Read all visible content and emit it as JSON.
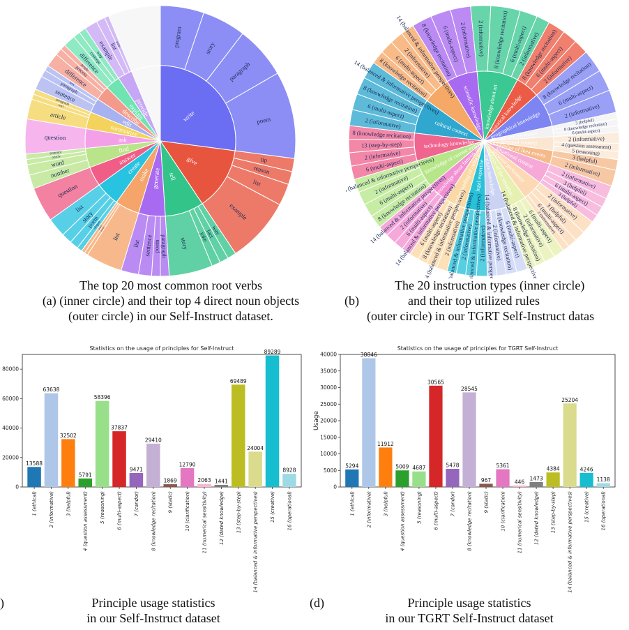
{
  "caption_a": {
    "letter": "(a)",
    "lines": [
      "The top 20 most common root verbs",
      "(inner circle) and their top 4 direct noun objects",
      "(outer circle) in our Self-Instruct dataset."
    ]
  },
  "caption_b": {
    "letter": "(b)",
    "lines": [
      "The 20 instruction types (inner circle)",
      "and their top utilized rules",
      "(outer circle) in our TGRT Self-Instruct datas"
    ]
  },
  "caption_c": {
    "letter": ")",
    "lines": [
      "Principle usage statistics",
      "in our Self-Instruct dataset"
    ]
  },
  "caption_d": {
    "letter": "(d)",
    "lines": [
      "Principle usage statistics",
      "in our TGRT Self-Instruct dataset"
    ]
  },
  "sunburst_a": {
    "inner": [
      {
        "label": "write",
        "color": "#6b6ef2",
        "weight": 26
      },
      {
        "label": "give",
        "color": "#e8553f",
        "weight": 13
      },
      {
        "label": "tell",
        "color": "#33c48a",
        "weight": 8
      },
      {
        "label": "generate",
        "color": "#a76af0",
        "weight": 5.5
      },
      {
        "label": "make",
        "color": "#f5a56a",
        "weight": 5
      },
      {
        "label": "create",
        "color": "#28c3e0",
        "weight": 5
      },
      {
        "label": "answer",
        "color": "#f05d86",
        "weight": 4
      },
      {
        "label": "find",
        "color": "#b9e48a",
        "weight": 4
      },
      {
        "label": "ask",
        "color": "#f3a0e8",
        "weight": 4
      },
      {
        "label": "summarize",
        "color": "#f3d35c",
        "weight": 3.5
      },
      {
        "label": "edit",
        "color": "#a9b2f0",
        "weight": 3
      },
      {
        "label": "describe",
        "color": "#f49a8a",
        "weight": 3
      },
      {
        "label": "explain",
        "color": "#6fe3b2",
        "weight": 3
      },
      {
        "label": "provide",
        "color": "#c6a7f5",
        "weight": 3
      },
      {
        "label": "",
        "color": "#f7f7f7",
        "weight": 6
      }
    ],
    "outer": [
      {
        "label": "program",
        "parent": 0,
        "weight": 5
      },
      {
        "label": "story",
        "parent": 0,
        "weight": 5
      },
      {
        "label": "paragraph",
        "parent": 0,
        "weight": 6
      },
      {
        "label": "poem",
        "parent": 0,
        "weight": 10
      },
      {
        "label": "tip",
        "parent": 1,
        "weight": 1.5
      },
      {
        "label": "reason",
        "parent": 1,
        "weight": 1.5
      },
      {
        "label": "list",
        "parent": 1,
        "weight": 2.5
      },
      {
        "label": "example",
        "parent": 1,
        "weight": 7.5
      },
      {
        "label": "way",
        "parent": 2,
        "weight": 1
      },
      {
        "label": "fact",
        "parent": 2,
        "weight": 1
      },
      {
        "label": "joke",
        "parent": 2,
        "weight": 1
      },
      {
        "label": "story",
        "parent": 2,
        "weight": 5
      },
      {
        "label": "paragraph",
        "parent": 3,
        "weight": 1
      },
      {
        "label": "poem",
        "parent": 3,
        "weight": 1
      },
      {
        "label": "sentence",
        "parent": 3,
        "weight": 1.5
      },
      {
        "label": "list",
        "parent": 3,
        "weight": 2
      },
      {
        "label": "list",
        "parent": 4,
        "weight": 4.2
      },
      {
        "label": "essay",
        "parent": 4,
        "weight": 0.4
      },
      {
        "label": "story",
        "parent": 4,
        "weight": 0.4
      },
      {
        "label": "slogan",
        "parent": 5,
        "weight": 0.6
      },
      {
        "label": "poem",
        "parent": 5,
        "weight": 1
      },
      {
        "label": "story",
        "parent": 5,
        "weight": 1.2
      },
      {
        "label": "list",
        "parent": 5,
        "weight": 2.2
      },
      {
        "label": "question",
        "parent": 6,
        "weight": 4
      },
      {
        "label": "number",
        "parent": 7,
        "weight": 1.6
      },
      {
        "label": "word",
        "parent": 7,
        "weight": 1.2
      },
      {
        "label": "article",
        "parent": 7,
        "weight": 0.6
      },
      {
        "label": "sentence",
        "parent": 7,
        "weight": 0.6
      },
      {
        "label": "question",
        "parent": 8,
        "weight": 4
      },
      {
        "label": "article",
        "parent": 9,
        "weight": 2.3
      },
      {
        "label": "text",
        "parent": 9,
        "weight": 0.6
      },
      {
        "label": "paragraph",
        "parent": 9,
        "weight": 0.6
      },
      {
        "label": "sentence",
        "parent": 10,
        "weight": 1.6
      },
      {
        "label": "paragraph",
        "parent": 10,
        "weight": 0.8
      },
      {
        "label": "text",
        "parent": 10,
        "weight": 0.6
      },
      {
        "label": "difference",
        "parent": 11,
        "weight": 1.6
      },
      {
        "label": "process",
        "parent": 11,
        "weight": 0.8
      },
      {
        "label": "people",
        "parent": 11,
        "weight": 0.6
      },
      {
        "label": "difference",
        "parent": 12,
        "weight": 1.4
      },
      {
        "label": "concept",
        "parent": 12,
        "weight": 0.8
      },
      {
        "label": "way",
        "parent": 12,
        "weight": 0.8
      },
      {
        "label": "example",
        "parent": 13,
        "weight": 1.5
      },
      {
        "label": "list",
        "parent": 13,
        "weight": 1
      },
      {
        "label": "guide",
        "parent": 13,
        "weight": 0.5
      },
      {
        "label": "",
        "parent": 14,
        "weight": 6
      }
    ]
  },
  "sunburst_b": {
    "inner": [
      {
        "label": "knowledge about art",
        "color": "#3cc892",
        "weight": 6
      },
      {
        "label": "historical knowledge",
        "color": "#ec5b45",
        "weight": 3.5
      },
      {
        "label": "geographical knowledge",
        "color": "#7d85f2",
        "weight": 5
      },
      {
        "label": "real-time information",
        "color": "#f2f2f2",
        "weight": 1.5
      },
      {
        "label": "personal context",
        "color": "#fbe6d2",
        "weight": 2
      },
      {
        "label": "knowledge of Ikea events",
        "color": "#f5b98a",
        "weight": 2
      },
      {
        "label": "situational context",
        "color": "#f6a9d6",
        "weight": 3
      },
      {
        "label": "personal preference",
        "color": "#fcd9b4",
        "weight": 3
      },
      {
        "label": "analysis of the situation",
        "color": "#e6f0b0",
        "weight": 3
      },
      {
        "label": "culture knowledge",
        "color": "#cbd3f5",
        "weight": 3
      },
      {
        "label": "legal expertise",
        "color": "#27c1d8",
        "weight": 3
      },
      {
        "label": "understanding of cultural traits",
        "color": "#fbd9a4",
        "weight": 3
      },
      {
        "label": "knowledge about famous people",
        "color": "#f291d1",
        "weight": 3
      },
      {
        "label": "knowledge of current events",
        "color": "#b7e68a",
        "weight": 4
      },
      {
        "label": "technology knowledge",
        "color": "#f0658f",
        "weight": 4
      },
      {
        "label": "cultural context",
        "color": "#2fa7ce",
        "weight": 5
      },
      {
        "label": "",
        "color": "#f6a866",
        "weight": 4
      },
      {
        "label": "scientific knowledge",
        "color": "#a86af0",
        "weight": 4.5
      }
    ],
    "outer": [
      {
        "label": "2 (informative)",
        "parent": 0,
        "weight": 1.5
      },
      {
        "label": "8 (knowledge recitation)",
        "parent": 0,
        "weight": 2.2
      },
      {
        "label": "6 (multi-aspect)",
        "parent": 0,
        "weight": 1.3
      },
      {
        "label": "2 (informative)",
        "parent": 0,
        "weight": 1
      },
      {
        "label": "8 (knowledge recitation)",
        "parent": 1,
        "weight": 1.3
      },
      {
        "label": "6 (multi-aspect)",
        "parent": 1,
        "weight": 1.1
      },
      {
        "label": "2 (informative)",
        "parent": 1,
        "weight": 1.1
      },
      {
        "label": "8 (knowledge recitation)",
        "parent": 2,
        "weight": 1.7
      },
      {
        "label": "6 (multi-aspect)",
        "parent": 2,
        "weight": 1.6
      },
      {
        "label": "2 (informative)",
        "parent": 2,
        "weight": 1.7
      },
      {
        "label": "3 (helpful)",
        "parent": 3,
        "weight": 0.5
      },
      {
        "label": "8 (knowledge recitation)",
        "parent": 3,
        "weight": 0.5
      },
      {
        "label": "6 (multi-aspect)",
        "parent": 3,
        "weight": 0.5
      },
      {
        "label": "2 (informative)",
        "parent": 4,
        "weight": 0.8
      },
      {
        "label": "4 (question assessment)",
        "parent": 4,
        "weight": 0.6
      },
      {
        "label": "5 (reasoning)",
        "parent": 4,
        "weight": 0.6
      },
      {
        "label": "3 (helpful)",
        "parent": 5,
        "weight": 0.8
      },
      {
        "label": "2 (informative)",
        "parent": 5,
        "weight": 1.2
      },
      {
        "label": "2 (informative)",
        "parent": 6,
        "weight": 1
      },
      {
        "label": "3 (helpful)",
        "parent": 6,
        "weight": 0.7
      },
      {
        "label": "6 (multi-aspect)",
        "parent": 6,
        "weight": 0.7
      },
      {
        "label": "3 (helpful)",
        "parent": 6,
        "weight": 0.6
      },
      {
        "label": "2 (informative)",
        "parent": 7,
        "weight": 1
      },
      {
        "label": "3 (helpful)",
        "parent": 7,
        "weight": 0.8
      },
      {
        "label": "6 (multi-aspect)",
        "parent": 7,
        "weight": 0.7
      },
      {
        "label": "2 (informative)",
        "parent": 7,
        "weight": 0.5
      },
      {
        "label": "6 (multi-aspect)",
        "parent": 8,
        "weight": 0.8
      },
      {
        "label": "2 (informative)",
        "parent": 8,
        "weight": 0.8
      },
      {
        "label": "8 (knowledge recitation)",
        "parent": 8,
        "weight": 0.7
      },
      {
        "label": "14 (balanced & informative perspectives)",
        "parent": 8,
        "weight": 0.7
      },
      {
        "label": "6 (multi-aspect)",
        "parent": 9,
        "weight": 0.8
      },
      {
        "label": "8 (knowledge recitation)",
        "parent": 9,
        "weight": 0.8
      },
      {
        "label": "2 (informative)",
        "parent": 9,
        "weight": 0.7
      },
      {
        "label": "14 (balanced & informative perspectives)",
        "parent": 9,
        "weight": 0.7
      },
      {
        "label": "2 (informative)",
        "parent": 10,
        "weight": 0.8
      },
      {
        "label": "14 (balanced & informative perspectives)",
        "parent": 10,
        "weight": 0.8
      },
      {
        "label": "2 (informative)",
        "parent": 10,
        "weight": 0.7
      },
      {
        "label": "14 (balanced & informative perspectives)",
        "parent": 10,
        "weight": 0.7
      },
      {
        "label": "2 (informative)",
        "parent": 11,
        "weight": 0.8
      },
      {
        "label": "14 (balanced & informative perspectives)",
        "parent": 11,
        "weight": 0.8
      },
      {
        "label": "8 (knowledge recitation)",
        "parent": 11,
        "weight": 0.7
      },
      {
        "label": "6 (multi-aspect)",
        "parent": 11,
        "weight": 0.7
      },
      {
        "label": "14 (balanced & informative perspectives)",
        "parent": 12,
        "weight": 0.7
      },
      {
        "label": "6 (multi-aspect)",
        "parent": 12,
        "weight": 0.7
      },
      {
        "label": "2 (informative)",
        "parent": 12,
        "weight": 0.8
      },
      {
        "label": "14 (balanced & informative perspectives)",
        "parent": 12,
        "weight": 0.8
      },
      {
        "label": "8 (knowledge recitation)",
        "parent": 13,
        "weight": 1
      },
      {
        "label": "6 (multi-aspect)",
        "parent": 13,
        "weight": 1
      },
      {
        "label": "2 (informative)",
        "parent": 13,
        "weight": 1
      },
      {
        "label": "14 (balanced & informative perspectives)",
        "parent": 13,
        "weight": 1
      },
      {
        "label": "6 (multi-aspect)",
        "parent": 14,
        "weight": 1
      },
      {
        "label": "2 (informative)",
        "parent": 14,
        "weight": 1
      },
      {
        "label": "13 (step-by-step)",
        "parent": 14,
        "weight": 1
      },
      {
        "label": "8 (knowledge recitation)",
        "parent": 14,
        "weight": 1
      },
      {
        "label": "2 (informative)",
        "parent": 15,
        "weight": 1.2
      },
      {
        "label": "6 (multi-aspect)",
        "parent": 15,
        "weight": 1.2
      },
      {
        "label": "8 (knowledge recitation)",
        "parent": 15,
        "weight": 1.3
      },
      {
        "label": "14 (balanced & informative perspectives)",
        "parent": 15,
        "weight": 1.3
      },
      {
        "label": "8 (knowledge recitation)",
        "parent": 16,
        "weight": 1
      },
      {
        "label": "6 (multi-aspect)",
        "parent": 16,
        "weight": 1
      },
      {
        "label": "2 (informative)",
        "parent": 16,
        "weight": 1
      },
      {
        "label": "14 (balanced & informative perspectives)",
        "parent": 16,
        "weight": 1
      },
      {
        "label": "8 (knowledge recitation)",
        "parent": 17,
        "weight": 1.5
      },
      {
        "label": "6 (multi-aspect)",
        "parent": 17,
        "weight": 1.5
      },
      {
        "label": "2 (informative)",
        "parent": 17,
        "weight": 1.5
      }
    ]
  },
  "chart_data": [
    {
      "type": "bar",
      "title": "Statistics on the usage of principles for Self-Instruct",
      "xlabel": "",
      "ylabel": "",
      "ylim": [
        0,
        90000
      ],
      "yticks": [
        0,
        20000,
        40000,
        60000,
        80000
      ],
      "categories": [
        "1 (ethical)",
        "2 (informative)",
        "3 (helpful)",
        "4 (question assessment)",
        "5 (reasoning)",
        "6 (multi-aspect)",
        "7 (candor)",
        "8 (knowledge recitation)",
        "9 (static)",
        "10 (clarification)",
        "11 (numerical sensitivity)",
        "12 (dated knowledge)",
        "13 (step-by-step)",
        "14 (balanced & informative perspectives)",
        "15 (creative)",
        "16 (operational)"
      ],
      "values": [
        13588,
        63638,
        32502,
        5791,
        58396,
        37837,
        9471,
        29410,
        1869,
        12790,
        2063,
        1441,
        69489,
        24004,
        89289,
        8928
      ],
      "colors": [
        "#1f77b4",
        "#aec7e8",
        "#ff7f0e",
        "#2ca02c",
        "#98df8a",
        "#d62728",
        "#9467bd",
        "#c5b0d5",
        "#8c564b",
        "#e377c2",
        "#f7b6d2",
        "#7f7f7f",
        "#bcbd22",
        "#dbdb8d",
        "#17becf",
        "#9edae5"
      ]
    },
    {
      "type": "bar",
      "title": "Statistics on the usage of principles for TGRT Self-Instruct",
      "xlabel": "",
      "ylabel": "Usage",
      "ylim": [
        0,
        40000
      ],
      "yticks": [
        0,
        5000,
        10000,
        15000,
        20000,
        25000,
        30000,
        35000,
        40000
      ],
      "categories": [
        "1 (ethical)",
        "2 (informative)",
        "3 (helpful)",
        "4 (question assessment)",
        "5 (reasoning)",
        "6 (multi-aspect)",
        "7 (candor)",
        "8 (knowledge recitation)",
        "9 (static)",
        "10 (clarification)",
        "11 (numerical sensitivity)",
        "12 (dated knowledge)",
        "13 (step-by-step)",
        "14 (balanced & informative perspectives)",
        "15 (creative)",
        "16 (operational)"
      ],
      "values": [
        5294,
        38846,
        11912,
        5009,
        4687,
        30565,
        5478,
        28545,
        967,
        5361,
        446,
        1473,
        4384,
        25204,
        4246,
        1138
      ],
      "colors": [
        "#1f77b4",
        "#aec7e8",
        "#ff7f0e",
        "#2ca02c",
        "#98df8a",
        "#d62728",
        "#9467bd",
        "#c5b0d5",
        "#8c564b",
        "#e377c2",
        "#f7b6d2",
        "#7f7f7f",
        "#bcbd22",
        "#dbdb8d",
        "#17becf",
        "#9edae5"
      ]
    }
  ]
}
